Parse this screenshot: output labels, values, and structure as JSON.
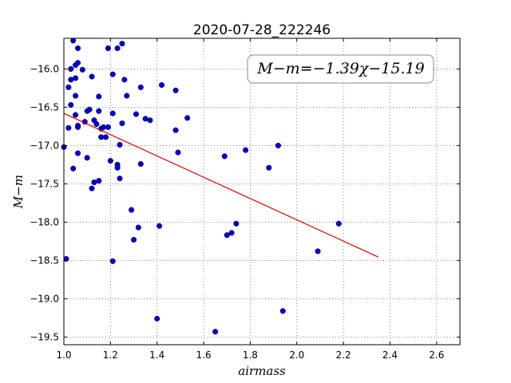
{
  "chart_data": {
    "type": "scatter",
    "title": "2020-07-28_222246",
    "xlabel": "airmass",
    "ylabel": "M−m",
    "xlim": [
      1.0,
      2.7
    ],
    "ylim": [
      -19.6,
      -15.6
    ],
    "y_inverted": false,
    "grid": true,
    "x_ticks": [
      1.0,
      1.2,
      1.4,
      1.6,
      1.8,
      2.0,
      2.2,
      2.4,
      2.6
    ],
    "x_tick_labels": [
      "1.0",
      "1.2",
      "1.4",
      "1.6",
      "1.8",
      "2.0",
      "2.2",
      "2.4",
      "2.6"
    ],
    "y_ticks": [
      -16.0,
      -16.5,
      -17.0,
      -17.5,
      -18.0,
      -18.5,
      -19.0,
      -19.5
    ],
    "y_tick_labels": [
      "−16.0",
      "−16.5",
      "−17.0",
      "−17.5",
      "−18.0",
      "−18.5",
      "−19.0",
      "−19.5"
    ],
    "annotation": "M−m=−1.39χ−15.19",
    "annotation_position": "top-right",
    "points_color": "#0000cc",
    "fit_color": "#dd0000",
    "fit_line": {
      "slope": -1.39,
      "intercept": -15.19,
      "x_range": [
        1.0,
        2.35
      ]
    },
    "points": [
      [
        1.01,
        -18.48
      ],
      [
        1.0,
        -17.02
      ],
      [
        1.02,
        -16.24
      ],
      [
        1.02,
        -16.77
      ],
      [
        1.03,
        -16.0
      ],
      [
        1.03,
        -16.14
      ],
      [
        1.03,
        -16.47
      ],
      [
        1.04,
        -15.63
      ],
      [
        1.04,
        -17.3
      ],
      [
        1.05,
        -16.12
      ],
      [
        1.05,
        -16.35
      ],
      [
        1.05,
        -15.95
      ],
      [
        1.05,
        -16.6
      ],
      [
        1.06,
        -15.73
      ],
      [
        1.06,
        -15.92
      ],
      [
        1.06,
        -17.1
      ],
      [
        1.06,
        -16.74
      ],
      [
        1.06,
        -16.76
      ],
      [
        1.08,
        -16.01
      ],
      [
        1.09,
        -16.69
      ],
      [
        1.1,
        -17.16
      ],
      [
        1.1,
        -16.55
      ],
      [
        1.11,
        -16.53
      ],
      [
        1.12,
        -16.1
      ],
      [
        1.12,
        -17.56
      ],
      [
        1.13,
        -17.48
      ],
      [
        1.13,
        -16.67
      ],
      [
        1.14,
        -16.72
      ],
      [
        1.15,
        -16.36
      ],
      [
        1.15,
        -16.55
      ],
      [
        1.15,
        -17.46
      ],
      [
        1.16,
        -16.78
      ],
      [
        1.16,
        -16.89
      ],
      [
        1.17,
        -16.76
      ],
      [
        1.18,
        -16.89
      ],
      [
        1.19,
        -16.76
      ],
      [
        1.19,
        -15.73
      ],
      [
        1.2,
        -17.2
      ],
      [
        1.21,
        -18.51
      ],
      [
        1.21,
        -16.58
      ],
      [
        1.21,
        -16.07
      ],
      [
        1.23,
        -17.25
      ],
      [
        1.23,
        -17.29
      ],
      [
        1.23,
        -15.73
      ],
      [
        1.24,
        -17.43
      ],
      [
        1.24,
        -16.99
      ],
      [
        1.25,
        -16.71
      ],
      [
        1.25,
        -15.67
      ],
      [
        1.26,
        -16.14
      ],
      [
        1.27,
        -16.35
      ],
      [
        1.29,
        -17.84
      ],
      [
        1.3,
        -18.23
      ],
      [
        1.31,
        -16.59
      ],
      [
        1.32,
        -18.07
      ],
      [
        1.33,
        -17.24
      ],
      [
        1.33,
        -16.24
      ],
      [
        1.35,
        -16.65
      ],
      [
        1.37,
        -16.67
      ],
      [
        1.4,
        -19.26
      ],
      [
        1.41,
        -18.05
      ],
      [
        1.42,
        -16.21
      ],
      [
        1.48,
        -16.8
      ],
      [
        1.48,
        -16.28
      ],
      [
        1.49,
        -17.09
      ],
      [
        1.53,
        -16.64
      ],
      [
        1.65,
        -19.43
      ],
      [
        1.69,
        -17.14
      ],
      [
        1.7,
        -18.17
      ],
      [
        1.72,
        -18.14
      ],
      [
        1.74,
        -18.02
      ],
      [
        1.78,
        -17.06
      ],
      [
        1.88,
        -17.29
      ],
      [
        1.92,
        -17.0
      ],
      [
        1.94,
        -19.16
      ],
      [
        2.09,
        -18.38
      ],
      [
        2.18,
        -18.02
      ]
    ]
  }
}
